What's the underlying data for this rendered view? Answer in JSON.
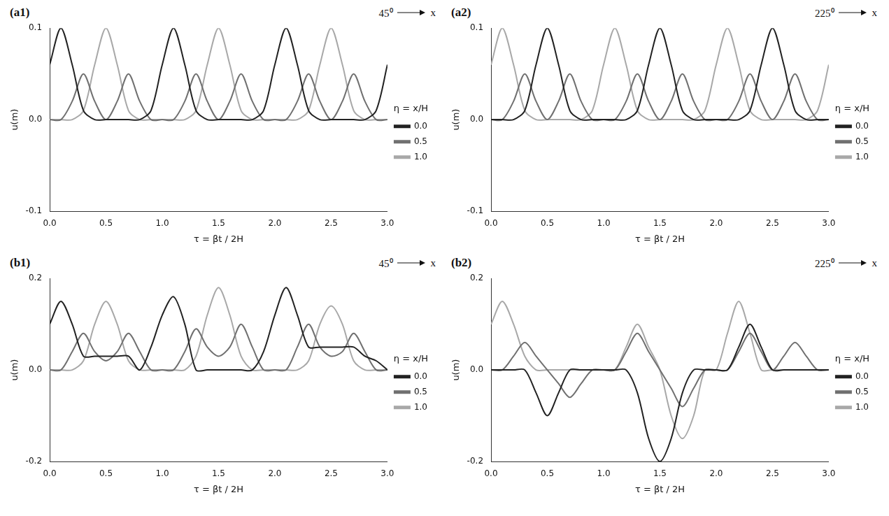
{
  "chart_data": [
    {
      "type": "line",
      "title": "(a1)",
      "angle": "45⁰",
      "direction_label": "x",
      "x_label": "τ = βt / 2H",
      "y_label": "u(m)",
      "legend_title": "η = x/H",
      "legend": "right",
      "grid": false,
      "xlim": [
        0,
        3
      ],
      "ylim": [
        -0.1,
        0.1
      ],
      "xticks": [
        {
          "value": 0,
          "label": "0.0"
        },
        0.5,
        {
          "value": 1,
          "label": "1.0"
        },
        1.5,
        {
          "value": 2,
          "label": "2.0"
        },
        2.5,
        {
          "value": 3,
          "label": "3.0"
        }
      ],
      "yticks": [
        -0.1,
        {
          "value": 0,
          "label": "0.0"
        },
        0.1
      ],
      "x": [
        0,
        0.1,
        0.2,
        0.3,
        0.4,
        0.5,
        0.6,
        0.7,
        0.8,
        0.9,
        1,
        1.1,
        1.2,
        1.3,
        1.4,
        1.5,
        1.6,
        1.7,
        1.8,
        1.9,
        2,
        2.1,
        2.2,
        2.3,
        2.4,
        2.5,
        2.6,
        2.7,
        2.8,
        2.9,
        3
      ],
      "series": [
        {
          "name": "0.0",
          "color": "#222222",
          "values": [
            0.06,
            0.1,
            0.06,
            0.01,
            0,
            0,
            0,
            0,
            0,
            0.01,
            0.06,
            0.1,
            0.06,
            0.01,
            0,
            0,
            0,
            0,
            0,
            0.01,
            0.06,
            0.1,
            0.06,
            0.01,
            0,
            0,
            0,
            0,
            0,
            0.01,
            0.06
          ]
        },
        {
          "name": "0.5",
          "color": "#707070",
          "values": [
            0,
            0,
            0.02,
            0.05,
            0.02,
            0,
            0.02,
            0.05,
            0.02,
            0,
            0,
            0,
            0.02,
            0.05,
            0.02,
            0,
            0.02,
            0.05,
            0.02,
            0,
            0,
            0,
            0.02,
            0.05,
            0.02,
            0,
            0.02,
            0.05,
            0.02,
            0,
            0
          ]
        },
        {
          "name": "1.0",
          "color": "#a8a8a8",
          "values": [
            0,
            0,
            0,
            0.01,
            0.06,
            0.1,
            0.06,
            0.01,
            0,
            0,
            0,
            0,
            0,
            0.01,
            0.06,
            0.1,
            0.06,
            0.01,
            0,
            0,
            0,
            0,
            0,
            0.01,
            0.06,
            0.1,
            0.06,
            0.01,
            0,
            0,
            0
          ]
        }
      ]
    },
    {
      "type": "line",
      "title": "(a2)",
      "angle": "225⁰",
      "direction_label": "x",
      "x_label": "τ = βt / 2H",
      "y_label": "u(m)",
      "legend_title": "η = x/H",
      "legend": "right",
      "grid": false,
      "xlim": [
        0,
        3
      ],
      "ylim": [
        -0.1,
        0.1
      ],
      "xticks": [
        {
          "value": 0,
          "label": "0.0"
        },
        0.5,
        {
          "value": 1,
          "label": "1.0"
        },
        1.5,
        {
          "value": 2,
          "label": "2.0"
        },
        2.5,
        {
          "value": 3,
          "label": "3.0"
        }
      ],
      "yticks": [
        -0.1,
        {
          "value": 0,
          "label": "0.0"
        },
        0.1
      ],
      "x": [
        0,
        0.1,
        0.2,
        0.3,
        0.4,
        0.5,
        0.6,
        0.7,
        0.8,
        0.9,
        1,
        1.1,
        1.2,
        1.3,
        1.4,
        1.5,
        1.6,
        1.7,
        1.8,
        1.9,
        2,
        2.1,
        2.2,
        2.3,
        2.4,
        2.5,
        2.6,
        2.7,
        2.8,
        2.9,
        3
      ],
      "series": [
        {
          "name": "0.0",
          "color": "#222222",
          "values": [
            0,
            0,
            0,
            0.01,
            0.06,
            0.1,
            0.06,
            0.01,
            0,
            0,
            0,
            0,
            0,
            0.01,
            0.06,
            0.1,
            0.06,
            0.01,
            0,
            0,
            0,
            0,
            0,
            0.01,
            0.06,
            0.1,
            0.06,
            0.01,
            0,
            0,
            0
          ]
        },
        {
          "name": "0.5",
          "color": "#707070",
          "values": [
            0,
            0,
            0.02,
            0.05,
            0.02,
            0,
            0.02,
            0.05,
            0.02,
            0,
            0,
            0,
            0.02,
            0.05,
            0.02,
            0,
            0.02,
            0.05,
            0.02,
            0,
            0,
            0,
            0.02,
            0.05,
            0.02,
            0,
            0.02,
            0.05,
            0.02,
            0,
            0
          ]
        },
        {
          "name": "1.0",
          "color": "#a8a8a8",
          "values": [
            0.06,
            0.1,
            0.06,
            0.01,
            0,
            0,
            0,
            0,
            0,
            0.01,
            0.06,
            0.1,
            0.06,
            0.01,
            0,
            0,
            0,
            0,
            0,
            0.01,
            0.06,
            0.1,
            0.06,
            0.01,
            0,
            0,
            0,
            0,
            0,
            0.01,
            0.06
          ]
        }
      ]
    },
    {
      "type": "line",
      "title": "(b1)",
      "angle": "45⁰",
      "direction_label": "x",
      "x_label": "τ = βt / 2H",
      "y_label": "u(m)",
      "legend_title": "η = x/H",
      "legend": "right",
      "grid": false,
      "xlim": [
        0,
        3
      ],
      "ylim": [
        -0.2,
        0.2
      ],
      "xticks": [
        {
          "value": 0,
          "label": "0.0"
        },
        0.5,
        {
          "value": 1,
          "label": "1.0"
        },
        1.5,
        {
          "value": 2,
          "label": "2.0"
        },
        2.5,
        {
          "value": 3,
          "label": "3.0"
        }
      ],
      "yticks": [
        -0.2,
        {
          "value": 0,
          "label": "0.0"
        },
        0.2
      ],
      "x": [
        0,
        0.1,
        0.2,
        0.3,
        0.4,
        0.5,
        0.6,
        0.7,
        0.8,
        0.9,
        1,
        1.1,
        1.2,
        1.3,
        1.4,
        1.5,
        1.6,
        1.7,
        1.8,
        1.9,
        2,
        2.1,
        2.2,
        2.3,
        2.4,
        2.5,
        2.6,
        2.7,
        2.8,
        2.9,
        3
      ],
      "series": [
        {
          "name": "0.0",
          "color": "#222222",
          "values": [
            0.1,
            0.15,
            0.1,
            0.03,
            0.03,
            0.03,
            0.03,
            0.03,
            0,
            0.05,
            0.12,
            0.16,
            0.1,
            0,
            0,
            0,
            0,
            0,
            0,
            0.04,
            0.12,
            0.18,
            0.12,
            0.05,
            0.05,
            0.05,
            0.05,
            0.05,
            0.03,
            0.02,
            0
          ]
        },
        {
          "name": "0.5",
          "color": "#707070",
          "values": [
            0,
            0,
            0.04,
            0.08,
            0.04,
            0.02,
            0.04,
            0.08,
            0.04,
            0,
            0,
            0,
            0.04,
            0.09,
            0.05,
            0.03,
            0.05,
            0.1,
            0.05,
            0,
            0,
            0,
            0.05,
            0.1,
            0.05,
            0.03,
            0.04,
            0.08,
            0.04,
            0,
            0
          ]
        },
        {
          "name": "1.0",
          "color": "#a8a8a8",
          "values": [
            0,
            0,
            0,
            0.02,
            0.1,
            0.15,
            0.1,
            0.02,
            0,
            0,
            0,
            0,
            0,
            0.03,
            0.12,
            0.18,
            0.12,
            0.03,
            0,
            0,
            0,
            0,
            0,
            0.02,
            0.1,
            0.14,
            0.1,
            0.02,
            0,
            0,
            0
          ]
        }
      ]
    },
    {
      "type": "line",
      "title": "(b2)",
      "angle": "225⁰",
      "direction_label": "x",
      "x_label": "τ = βt / 2H",
      "y_label": "u(m)",
      "legend_title": "η = x/H",
      "legend": "right",
      "grid": false,
      "xlim": [
        0,
        3
      ],
      "ylim": [
        -0.2,
        0.2
      ],
      "xticks": [
        {
          "value": 0,
          "label": "0.0"
        },
        0.5,
        {
          "value": 1,
          "label": "1.0"
        },
        1.5,
        {
          "value": 2,
          "label": "2.0"
        },
        2.5,
        {
          "value": 3,
          "label": "3.0"
        }
      ],
      "yticks": [
        -0.2,
        {
          "value": 0,
          "label": "0.0"
        },
        0.2
      ],
      "x": [
        0,
        0.1,
        0.2,
        0.3,
        0.4,
        0.5,
        0.6,
        0.7,
        0.8,
        0.9,
        1,
        1.1,
        1.2,
        1.3,
        1.4,
        1.5,
        1.6,
        1.7,
        1.8,
        1.9,
        2,
        2.1,
        2.2,
        2.3,
        2.4,
        2.5,
        2.6,
        2.7,
        2.8,
        2.9,
        3
      ],
      "series": [
        {
          "name": "0.0",
          "color": "#222222",
          "values": [
            0,
            0,
            0,
            0,
            -0.05,
            -0.1,
            -0.05,
            0,
            0,
            0,
            0,
            0,
            0,
            -0.05,
            -0.15,
            -0.2,
            -0.15,
            -0.05,
            0,
            0,
            0,
            0,
            0.05,
            0.1,
            0.05,
            0,
            0,
            0,
            0,
            0,
            0
          ]
        },
        {
          "name": "0.5",
          "color": "#707070",
          "values": [
            0,
            0,
            0.03,
            0.06,
            0.03,
            0,
            -0.03,
            -0.06,
            -0.03,
            0,
            0,
            0,
            0.04,
            0.08,
            0.04,
            0,
            -0.04,
            -0.08,
            -0.04,
            0,
            0,
            0,
            0.04,
            0.08,
            0.04,
            0,
            0.03,
            0.06,
            0.03,
            0,
            0
          ]
        },
        {
          "name": "1.0",
          "color": "#a8a8a8",
          "values": [
            0.1,
            0.15,
            0.1,
            0.03,
            0,
            0,
            0,
            0,
            0,
            0,
            0,
            0,
            0.05,
            0.1,
            0.05,
            0,
            -0.1,
            -0.15,
            -0.1,
            0,
            0,
            0.08,
            0.15,
            0.08,
            0,
            0,
            0,
            0,
            0,
            0,
            0
          ]
        }
      ]
    }
  ]
}
